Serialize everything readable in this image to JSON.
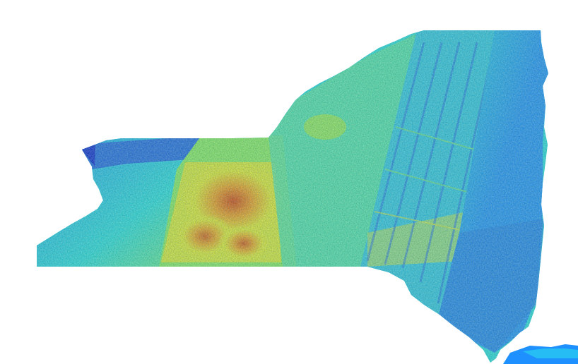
{
  "map": {
    "region": "new-york-state",
    "colormap": "jet",
    "background_color": "#ffffff",
    "colors": {
      "low": "#0a1fd6",
      "low_mid": "#1e90ff",
      "mid": "#27e0e0",
      "mid_high": "#8ef05a",
      "high_mid": "#f2ee24",
      "high": "#ff9a10",
      "peak": "#e23a00"
    }
  }
}
